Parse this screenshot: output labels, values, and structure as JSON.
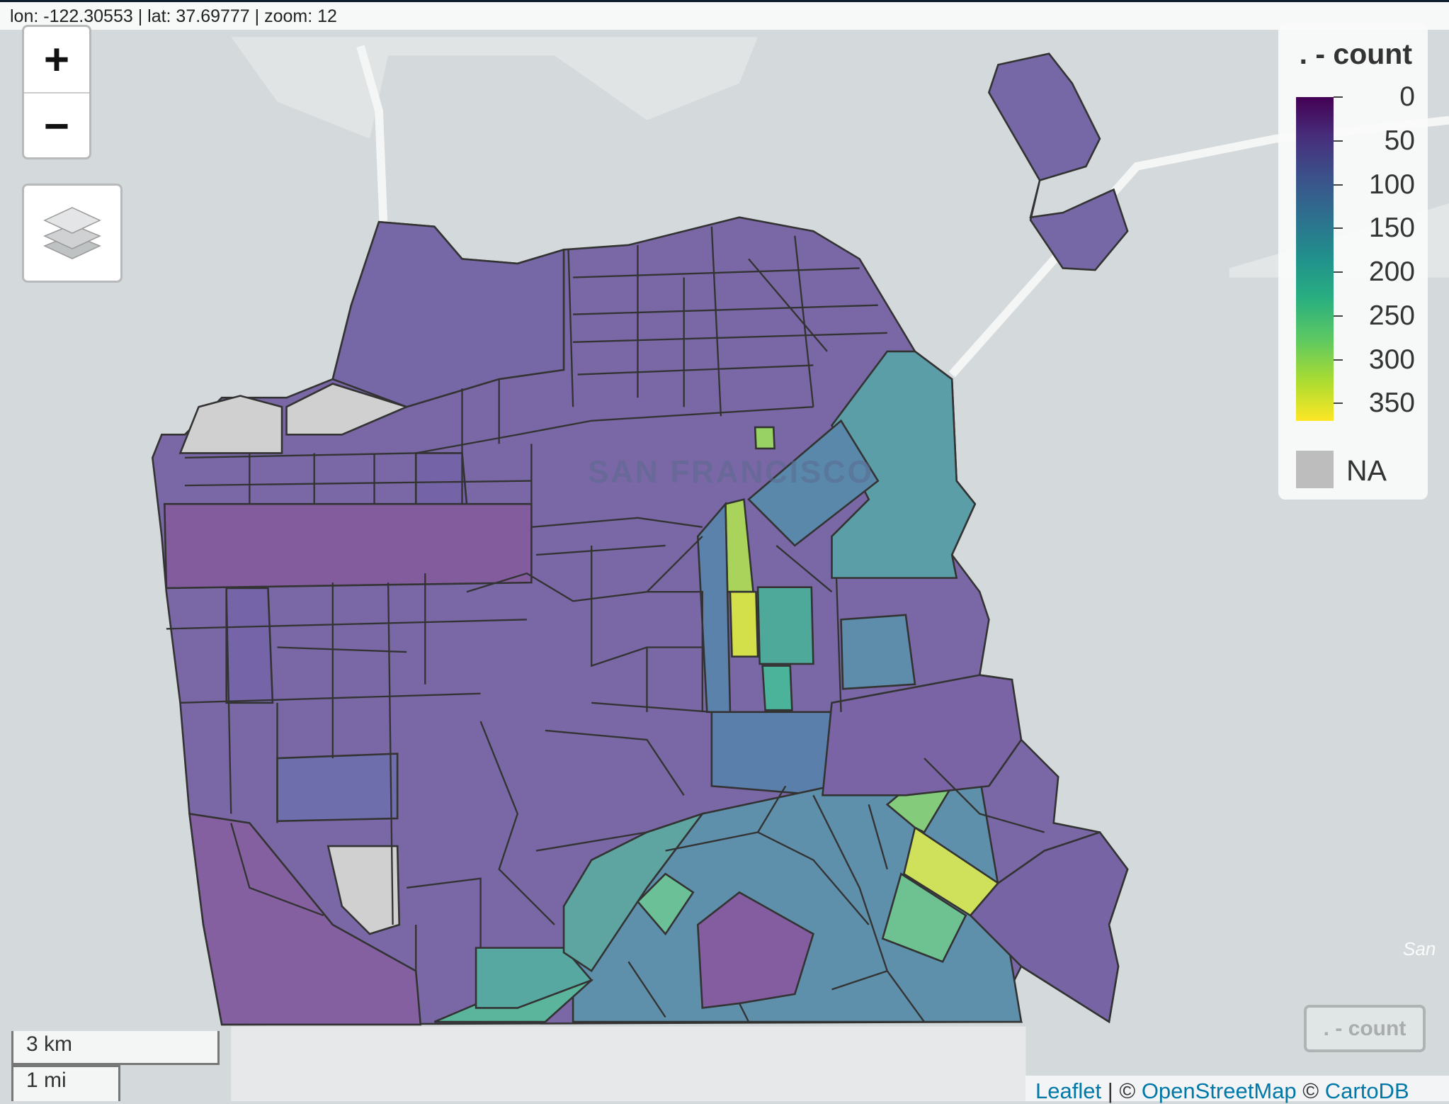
{
  "coords": {
    "text": "lon: -122.30553 | lat: 37.69777 | zoom: 12"
  },
  "zoom_control": {
    "zoom_in": "+",
    "zoom_out": "−"
  },
  "layers_control": {
    "icon": "layers-icon"
  },
  "map_labels": {
    "city": "SAN FRANCISCO",
    "partial": "San"
  },
  "legend": {
    "title": ". - count",
    "ticks": [
      "0",
      "50",
      "100",
      "150",
      "200",
      "250",
      "300",
      "350"
    ],
    "na_label": "NA",
    "palette": "viridis",
    "range": [
      0,
      370
    ],
    "na_color": "#bdbdbd"
  },
  "layer_toggle": {
    "label": ". - count"
  },
  "scale_bar": {
    "metric": "3 km",
    "imperial": "1 mi"
  },
  "attribution": {
    "leaflet": "Leaflet",
    "sep": " | © ",
    "osm": "OpenStreetMap",
    "mid": " © ",
    "carto": "CartoDB"
  },
  "colors": {
    "low": "#440154",
    "high": "#fde725",
    "link": "#0078a8",
    "outline": "#333333"
  }
}
